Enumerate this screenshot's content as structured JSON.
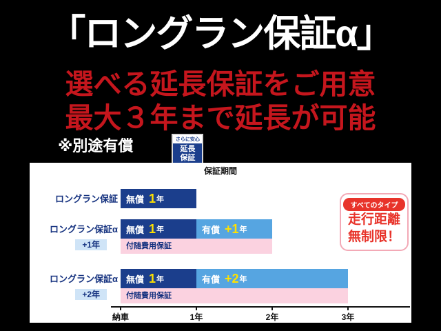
{
  "page": {
    "title": "「ロングラン保証α」",
    "subtitle_line1": "選べる延長保証をご用意",
    "subtitle_line2": "最大３年まで延長が可能",
    "note": "※別途有償",
    "stamp": {
      "top": "さらに安心",
      "line1": "延長",
      "line2": "保証"
    }
  },
  "badge": {
    "header": "すべてのタイプ",
    "line1": "走行距離",
    "line2": "無制限！"
  },
  "colors": {
    "background": "#000000",
    "title_text": "#ffffff",
    "subtitle_red": "#c5161d",
    "navy": "#1b3e8c",
    "light_blue": "#56a5e1",
    "pink": "#fbd2e0",
    "highlight_yellow": "#ffe100",
    "badge_red": "#e8332a",
    "sublabel_bg": "#cfe4f7"
  },
  "chart_data": {
    "type": "bar",
    "title": "保証期間",
    "x_axis": {
      "ticks": [
        "納車",
        "1年",
        "2年",
        "3年"
      ],
      "values": [
        0,
        1,
        2,
        3
      ]
    },
    "unit": "年",
    "rows": [
      {
        "label": "ロングラン保証",
        "sublabel": "",
        "segments": [
          {
            "name": "free",
            "prefix": "無償",
            "num": "1",
            "suffix": "年",
            "start": 0,
            "end": 1,
            "color": "#1b3e8c"
          }
        ],
        "cost_bar": null
      },
      {
        "label": "ロングラン保証α",
        "sublabel": "+1年",
        "segments": [
          {
            "name": "free",
            "prefix": "無償",
            "num": "1",
            "suffix": "年",
            "start": 0,
            "end": 1,
            "color": "#1b3e8c"
          },
          {
            "name": "paid",
            "prefix": "有償",
            "num": "+1",
            "suffix": "年",
            "start": 1,
            "end": 2,
            "color": "#56a5e1"
          }
        ],
        "cost_bar": {
          "label": "付随費用保証",
          "start": 0,
          "end": 2,
          "color": "#fbd2e0"
        }
      },
      {
        "label": "ロングラン保証α",
        "sublabel": "+2年",
        "segments": [
          {
            "name": "free",
            "prefix": "無償",
            "num": "1",
            "suffix": "年",
            "start": 0,
            "end": 1,
            "color": "#1b3e8c"
          },
          {
            "name": "paid",
            "prefix": "有償",
            "num": "+2",
            "suffix": "年",
            "start": 1,
            "end": 3,
            "color": "#56a5e1"
          }
        ],
        "cost_bar": {
          "label": "付随費用保証",
          "start": 0,
          "end": 3,
          "color": "#fbd2e0"
        }
      }
    ]
  }
}
